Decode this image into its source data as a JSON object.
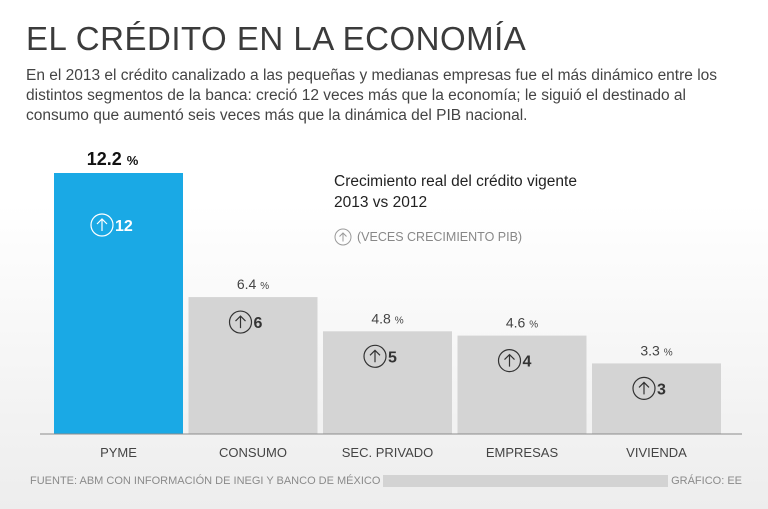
{
  "title": "EL CRÉDITO EN LA ECONOMÍA",
  "subtitle": "En el 2013 el crédito canalizado a las pequeñas y medianas empresas fue el más dinámico entre los distintos segmentos de la banca: creció 12 veces más que la economía; le siguió el destinado al consumo que aumentó seis veces más que la dinámica del PIB nacional.",
  "legend": {
    "title_line1": "Crecimiento real del crédito vigente",
    "title_line2": "2013 vs 2012",
    "note": "(VECES CRECIMIENTO PIB)",
    "icon": "up-arrow-circle-icon"
  },
  "footer": {
    "source": "FUENTE: ABM CON INFORMACIÓN DE INEGI Y BANCO DE MÉXICO",
    "credit": "GRÁFICO: EE"
  },
  "colors": {
    "highlight": "#1aa9e5",
    "bar": "#d4d4d4",
    "axis": "#8c8c8c"
  },
  "chart_data": {
    "type": "bar",
    "categories": [
      "PYME",
      "CONSUMO",
      "SEC. PRIVADO",
      "EMPRESAS",
      "VIVIENDA"
    ],
    "values": [
      12.2,
      6.4,
      4.8,
      4.6,
      3.3
    ],
    "value_unit": "%",
    "times_gdp_growth": [
      12,
      6,
      5,
      4,
      3
    ],
    "highlighted_category": "PYME",
    "title": "Crecimiento real del crédito vigente 2013 vs 2012",
    "ylim": [
      0,
      12.2
    ],
    "grid": false
  }
}
